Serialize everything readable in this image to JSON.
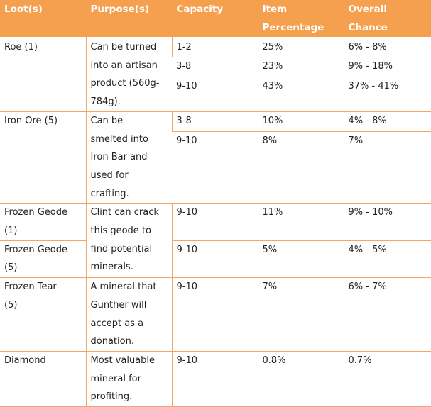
{
  "header": {
    "loot": "Loot(s)",
    "purpose": "Purpose(s)",
    "capacity": "Capacity",
    "item_pct_1": "Item",
    "item_pct_2": "Percentage",
    "overall_1": "Overall",
    "overall_2": "Chance"
  },
  "rows": {
    "roe": {
      "loot": "Roe (1)",
      "purpose_1": "Can be turned",
      "purpose_2": "into an artisan",
      "purpose_3": "product (560g-",
      "purpose_4": "784g).",
      "entries": [
        {
          "capacity": "1-2",
          "item": "25%",
          "overall": "6% - 8%"
        },
        {
          "capacity": "3-8",
          "item": "23%",
          "overall": "9% - 18%"
        },
        {
          "capacity": "9-10",
          "item": "43%",
          "overall": "37% - 41%"
        }
      ]
    },
    "iron": {
      "loot": "Iron Ore (5)",
      "purpose_1": "Can be",
      "purpose_2": "smelted into",
      "purpose_3": "Iron Bar and",
      "purpose_4": "used for",
      "purpose_5": "crafting.",
      "entries": [
        {
          "capacity": "3-8",
          "item": "10%",
          "overall": "4% - 8%"
        },
        {
          "capacity": "9-10",
          "item": "8%",
          "overall": "7%"
        }
      ]
    },
    "geode1": {
      "loot_1": "Frozen Geode",
      "loot_2": "(1)",
      "capacity": "9-10",
      "item": "11%",
      "overall": "9% - 10%"
    },
    "geode_purpose": {
      "line_1": "Clint can crack",
      "line_2": "this geode to",
      "line_3": "find potential",
      "line_4": "minerals."
    },
    "geode5": {
      "loot_1": "Frozen Geode",
      "loot_2": "(5)",
      "capacity": "9-10",
      "item": "5%",
      "overall": "4% - 5%"
    },
    "tear": {
      "loot_1": "Frozen Tear",
      "loot_2": "(5)",
      "purpose_1": "A mineral that",
      "purpose_2": "Gunther will",
      "purpose_3": "accept as a",
      "purpose_4": "donation.",
      "capacity": "9-10",
      "item": "7%",
      "overall": "6% - 7%"
    },
    "diamond": {
      "loot": "Diamond",
      "purpose_1": "Most valuable",
      "purpose_2": "mineral for",
      "purpose_3": "profiting.",
      "capacity": "9-10",
      "item": "0.8%",
      "overall": "0.7%"
    }
  }
}
